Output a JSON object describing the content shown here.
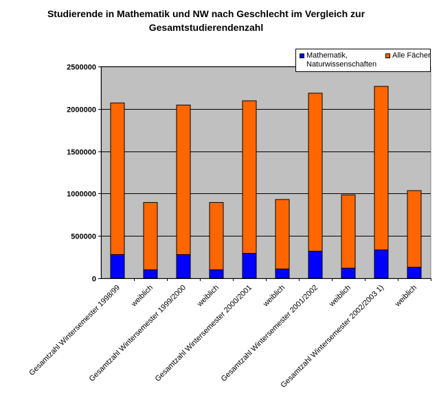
{
  "chart_data": {
    "type": "bar",
    "stacked": true,
    "title_line1": "Studierende in Mathematik und NW nach Geschlecht im Vergleich zur",
    "title_line2": "Gesamtstudierendenzahl",
    "categories": [
      "Gesamtzahl Wintersemester 1998/99",
      "weiblich",
      "Gesamtzahl Wintersemester 1999/2000",
      "weiblich",
      "Gesamtzahl Wintersemester 2000/2001",
      "weiblich",
      "Gesamtzahl Wintersemester 2001/2002",
      "weiblich",
      "Gesamtzahl Wintersemester 2002/2003   1)",
      "weiblich"
    ],
    "series": [
      {
        "name": "Mathematik, Naturwissenschaften",
        "color": "#0000FF",
        "values": [
          280000,
          100000,
          280000,
          100000,
          295000,
          110000,
          320000,
          120000,
          335000,
          130000
        ]
      },
      {
        "name": "Alle Fächer",
        "color": "#FF6600",
        "values": [
          1790000,
          795000,
          1765000,
          795000,
          1800000,
          820000,
          1865000,
          865000,
          1930000,
          905000
        ]
      }
    ],
    "legend_line1": "Mathematik,",
    "legend_line2": "Naturwissenschaften",
    "ylim": [
      0,
      2500000
    ],
    "y_ticks": [
      "0",
      "500000",
      "1000000",
      "1500000",
      "2000000",
      "2500000"
    ],
    "plot_background": "#C0C0C0",
    "grid": true,
    "legend_position": "top-right"
  }
}
